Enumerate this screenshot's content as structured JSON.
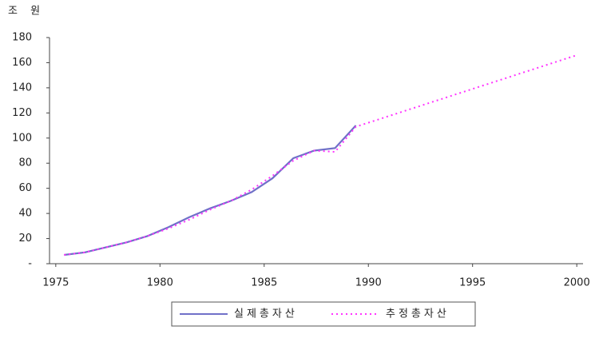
{
  "chart_data": {
    "type": "line",
    "y_unit": "조 원",
    "xlim": [
      1974.7,
      2000.3
    ],
    "xticks": [
      1975,
      1980,
      1985,
      1990,
      1995,
      2000
    ],
    "ylim": [
      0,
      180
    ],
    "yticks": [
      {
        "value": 0,
        "label": "-"
      },
      20,
      40,
      60,
      80,
      100,
      120,
      140,
      160,
      180
    ],
    "legend": "bottom",
    "series": [
      {
        "name": "실제총자산",
        "color": "#7070c8",
        "style": "solid",
        "x": [
          1975.4,
          1976.4,
          1977.4,
          1978.4,
          1979.4,
          1980.4,
          1981.4,
          1982.4,
          1983.4,
          1984.4,
          1985.4,
          1986.4,
          1987.4,
          1988.4,
          1989.4
        ],
        "values": [
          7,
          9,
          13,
          17,
          22,
          29,
          37,
          44,
          50,
          57,
          68,
          84,
          90,
          92,
          110
        ]
      },
      {
        "name": "추정총자산",
        "color": "#ff33ff",
        "style": "dotted",
        "x": [
          1975.4,
          1976.4,
          1977.4,
          1978.4,
          1979.4,
          1980.4,
          1981.4,
          1982.4,
          1983.4,
          1984.4,
          1985.4,
          1986.4,
          1987.4,
          1988.4,
          1989.4,
          2000
        ],
        "values": [
          7,
          9,
          13,
          17,
          22,
          28,
          35,
          43,
          50,
          59,
          70,
          82,
          90,
          89,
          109,
          166
        ]
      }
    ]
  }
}
